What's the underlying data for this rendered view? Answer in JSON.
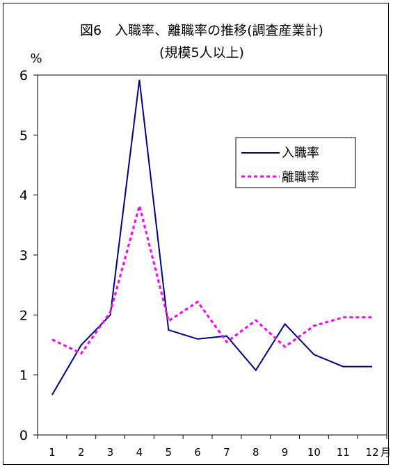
{
  "chart_data": {
    "type": "line",
    "title": "図6　入職率、離職率の推移(調査産業計)",
    "subtitle": "(規模5人以上)",
    "ylabel": "%",
    "xlabel": "",
    "x_unit": "月",
    "categories": [
      "1",
      "2",
      "3",
      "4",
      "5",
      "6",
      "7",
      "8",
      "9",
      "10",
      "11",
      "12"
    ],
    "ylim": [
      0,
      6
    ],
    "yticks": [
      "0",
      "1",
      "2",
      "3",
      "4",
      "5",
      "6"
    ],
    "grid": false,
    "legend_position": "right",
    "series": [
      {
        "name": "入職率",
        "color": "#000080",
        "style": "solid",
        "values": [
          0.67,
          1.5,
          2.0,
          5.92,
          1.75,
          1.6,
          1.65,
          1.08,
          1.85,
          1.34,
          1.14,
          1.14
        ]
      },
      {
        "name": "離職率",
        "color": "#FF00FF",
        "style": "dashed",
        "values": [
          1.59,
          1.36,
          2.05,
          3.82,
          1.9,
          2.22,
          1.55,
          1.91,
          1.47,
          1.82,
          1.96,
          1.96
        ]
      }
    ]
  }
}
